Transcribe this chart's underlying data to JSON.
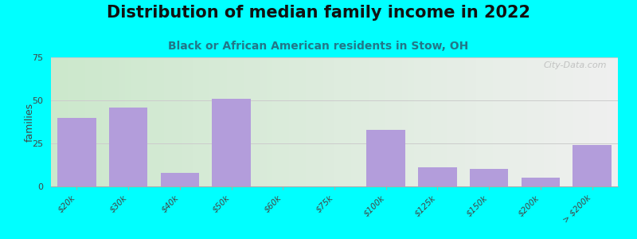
{
  "title": "Distribution of median family income in 2022",
  "subtitle": "Black or African American residents in Stow, OH",
  "categories": [
    "$20k",
    "$30k",
    "$40k",
    "$50k",
    "$60k",
    "$75k",
    "$100k",
    "$125k",
    "$150k",
    "$200k",
    "> $200k"
  ],
  "values": [
    40,
    46,
    8,
    51,
    0,
    0,
    33,
    11,
    10,
    5,
    24
  ],
  "bar_color": "#b39ddb",
  "background_color": "#00ffff",
  "plot_bg_left": "#cce8cc",
  "plot_bg_right": "#f0f0f0",
  "ylabel": "families",
  "ylim": [
    0,
    75
  ],
  "yticks": [
    0,
    25,
    50,
    75
  ],
  "title_fontsize": 15,
  "subtitle_fontsize": 10,
  "watermark": "City-Data.com"
}
